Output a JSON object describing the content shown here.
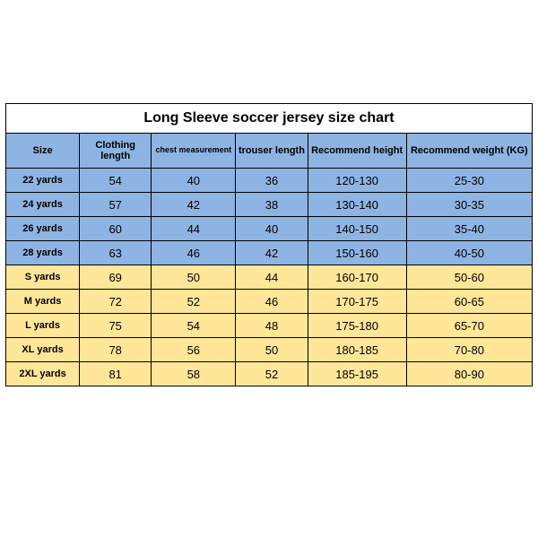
{
  "table": {
    "title": "Long Sleeve soccer jersey size chart",
    "columns": [
      {
        "label": "Size",
        "small": false
      },
      {
        "label": "Clothing length",
        "small": false
      },
      {
        "label": "chest measurement",
        "small": true
      },
      {
        "label": "trouser length",
        "small": false
      },
      {
        "label": "Recommend height",
        "small": false
      },
      {
        "label": "Recommend weight (KG)",
        "small": false
      }
    ],
    "rows": [
      {
        "color": "blue",
        "cells": [
          "22 yards",
          "54",
          "40",
          "36",
          "120-130",
          "25-30"
        ]
      },
      {
        "color": "blue",
        "cells": [
          "24 yards",
          "57",
          "42",
          "38",
          "130-140",
          "30-35"
        ]
      },
      {
        "color": "blue",
        "cells": [
          "26 yards",
          "60",
          "44",
          "40",
          "140-150",
          "35-40"
        ]
      },
      {
        "color": "blue",
        "cells": [
          "28 yards",
          "63",
          "46",
          "42",
          "150-160",
          "40-50"
        ]
      },
      {
        "color": "yellow",
        "cells": [
          "S yards",
          "69",
          "50",
          "44",
          "160-170",
          "50-60"
        ]
      },
      {
        "color": "yellow",
        "cells": [
          "M yards",
          "72",
          "52",
          "46",
          "170-175",
          "60-65"
        ]
      },
      {
        "color": "yellow",
        "cells": [
          "L yards",
          "75",
          "54",
          "48",
          "175-180",
          "65-70"
        ]
      },
      {
        "color": "yellow",
        "cells": [
          "XL yards",
          "78",
          "56",
          "50",
          "180-185",
          "70-80"
        ]
      },
      {
        "color": "yellow",
        "cells": [
          "2XL yards",
          "81",
          "58",
          "52",
          "185-195",
          "80-90"
        ]
      }
    ],
    "colors": {
      "header_bg": "#8eb4e3",
      "blue_bg": "#8eb4e3",
      "yellow_bg": "#ffe699",
      "border": "#000000",
      "page_bg": "#ffffff"
    }
  }
}
